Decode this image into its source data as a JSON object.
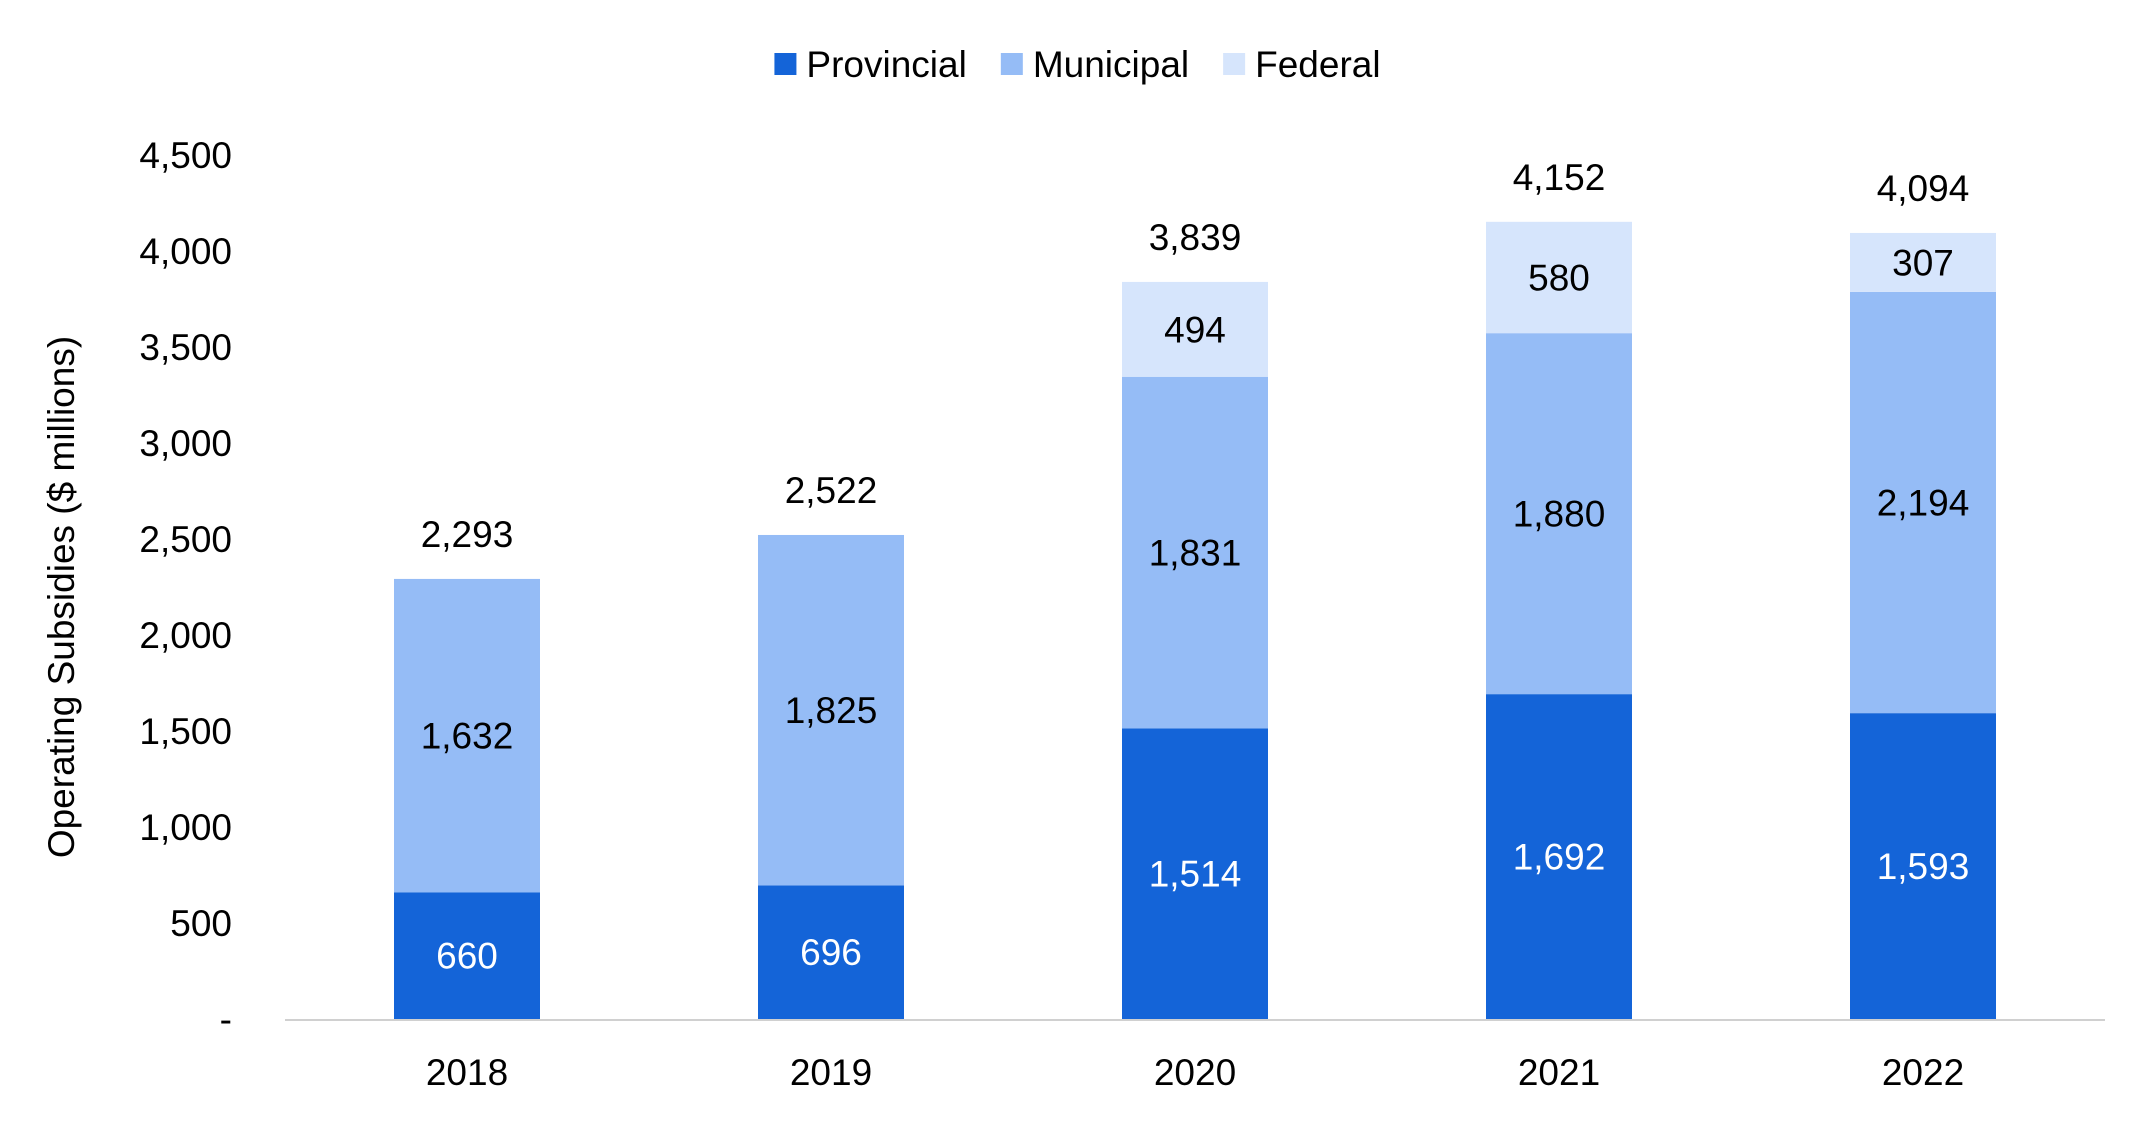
{
  "chart_data": {
    "type": "bar",
    "stacked": true,
    "categories": [
      "2018",
      "2019",
      "2020",
      "2021",
      "2022"
    ],
    "series": [
      {
        "name": "Provincial",
        "color": "#1464d8",
        "label_color": "#ffffff",
        "values": [
          660,
          696,
          1514,
          1692,
          1593
        ],
        "labels": [
          "660",
          "696",
          "1,514",
          "1,692",
          "1,593"
        ]
      },
      {
        "name": "Municipal",
        "color": "#95bcf6",
        "label_color": "#000000",
        "values": [
          1632,
          1825,
          1831,
          1880,
          2194
        ],
        "labels": [
          "1,632",
          "1,825",
          "1,831",
          "1,880",
          "2,194"
        ]
      },
      {
        "name": "Federal",
        "color": "#d6e5fc",
        "label_color": "#000000",
        "values": [
          0,
          0,
          494,
          580,
          307
        ],
        "labels": [
          "",
          "",
          "494",
          "580",
          "307"
        ]
      }
    ],
    "totals": [
      2293,
      2522,
      3839,
      4152,
      4094
    ],
    "total_labels": [
      "2,293",
      "2,522",
      "3,839",
      "4,152",
      "4,094"
    ],
    "ylabel": "Operating Subsidies ($ millions)",
    "xlabel": "",
    "ylim": [
      0,
      4500
    ],
    "yticks": [
      0,
      500,
      1000,
      1500,
      2000,
      2500,
      3000,
      3500,
      4000,
      4500
    ],
    "ytick_labels": [
      "-",
      "500",
      "1,000",
      "1,500",
      "2,000",
      "2,500",
      "3,000",
      "3,500",
      "4,000",
      "4,500"
    ],
    "grid": false,
    "legend_position": "top-center",
    "axis_color": "#d0d0d0"
  }
}
